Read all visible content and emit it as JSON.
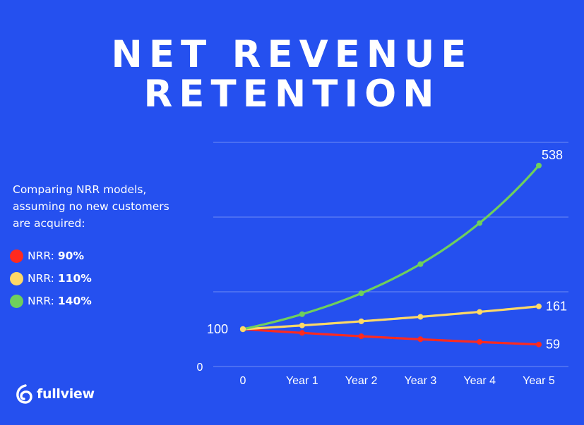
{
  "title_lines": [
    "NET REVENUE",
    "RETENTION"
  ],
  "description": "Comparing NRR models, assuming no new customers are acquired:",
  "legend": [
    {
      "prefix": "NRR:",
      "value": "90%",
      "color": "#ff2a1f"
    },
    {
      "prefix": "NRR:",
      "value": "110%",
      "color": "#ffd966"
    },
    {
      "prefix": "NRR:",
      "value": "140%",
      "color": "#6fcf5c"
    }
  ],
  "brand": {
    "name": "fullview",
    "icon": "fullview-logo-icon"
  },
  "colors": {
    "background": "#2550ef",
    "grid": "#6f8cf5",
    "text": "#ffffff"
  },
  "chart_data": {
    "type": "line",
    "categories": [
      "0",
      "Year 1",
      "Year 2",
      "Year 3",
      "Year 4",
      "Year 5"
    ],
    "y_tick_labels": [
      "0",
      "100"
    ],
    "ylim": [
      0,
      600
    ],
    "grid": true,
    "series": [
      {
        "name": "NRR: 90%",
        "color": "#ff2a1f",
        "values": [
          100,
          90,
          81,
          73,
          66,
          59
        ],
        "end_label": "59"
      },
      {
        "name": "NRR: 110%",
        "color": "#ffd966",
        "values": [
          100,
          110,
          121,
          133,
          146,
          161
        ],
        "end_label": "161"
      },
      {
        "name": "NRR: 140%",
        "color": "#6fcf5c",
        "values": [
          100,
          140,
          196,
          274,
          384,
          538
        ],
        "end_label": "538"
      }
    ]
  }
}
